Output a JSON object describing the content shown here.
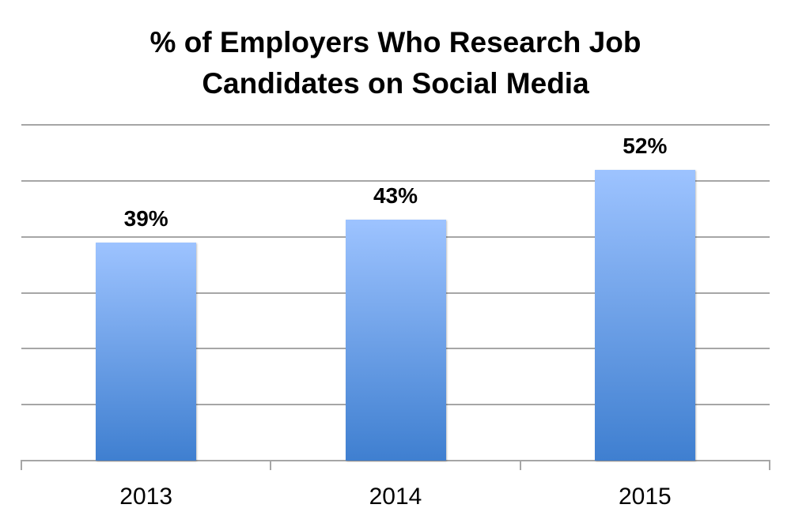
{
  "chart_data": {
    "type": "bar",
    "title": "% of Employers Who Research Job Candidates on Social Media",
    "title_lines": [
      "% of Employers Who Research Job",
      "Candidates on Social Media"
    ],
    "categories": [
      "2013",
      "2014",
      "2015"
    ],
    "values": [
      39,
      43,
      52
    ],
    "data_labels": [
      "39%",
      "43%",
      "52%"
    ],
    "xlabel": "",
    "ylabel": "",
    "ylim": [
      0,
      60
    ],
    "gridlines": [
      0,
      10,
      20,
      30,
      40,
      50,
      60
    ],
    "grid": true,
    "y_tick_labels_visible": false,
    "legend": null,
    "colors": {
      "bar_top": "#9DC3FF",
      "bar_bottom": "#3F7FD0",
      "grid": "#A6A6A6"
    }
  }
}
